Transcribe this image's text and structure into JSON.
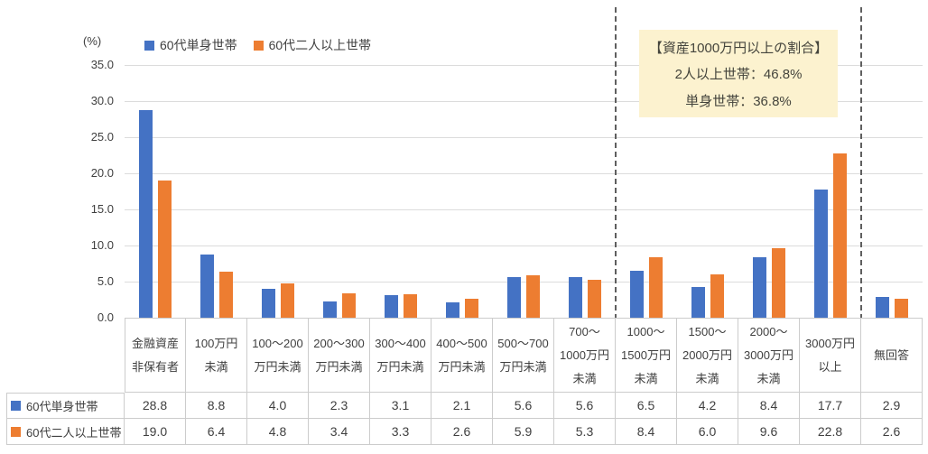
{
  "chart_data": {
    "type": "bar",
    "title": "",
    "ylabel": "(%)",
    "ylim": [
      0,
      35
    ],
    "ytick_step": 5,
    "grid": true,
    "legend_position": "top",
    "categories": [
      [
        "金融資産",
        "非保有者"
      ],
      [
        "100万円",
        "未満"
      ],
      [
        "100～200",
        "万円未満"
      ],
      [
        "200～300",
        "万円未満"
      ],
      [
        "300～400",
        "万円未満"
      ],
      [
        "400～500",
        "万円未満"
      ],
      [
        "500～700",
        "万円未満"
      ],
      [
        "700～",
        "1000万円",
        "未満"
      ],
      [
        "1000～",
        "1500万円",
        "未満"
      ],
      [
        "1500～",
        "2000万円",
        "未満"
      ],
      [
        "2000～",
        "3000万円",
        "未満"
      ],
      [
        "3000万円",
        "以上"
      ],
      [
        "無回答"
      ]
    ],
    "series": [
      {
        "name": "60代単身世帯",
        "color": "#4472C4",
        "values": [
          28.8,
          8.8,
          4.0,
          2.3,
          3.1,
          2.1,
          5.6,
          5.6,
          6.5,
          4.2,
          8.4,
          17.7,
          2.9
        ]
      },
      {
        "name": "60代二人以上世帯",
        "color": "#ED7D31",
        "values": [
          19.0,
          6.4,
          4.8,
          3.4,
          3.3,
          2.6,
          5.9,
          5.3,
          8.4,
          6.0,
          9.6,
          22.8,
          2.6
        ]
      }
    ],
    "separators_after_category_index": [
      8,
      12
    ]
  },
  "annotation": {
    "bg_color": "#FCF2CF",
    "title": "【資産1000万円以上の割合】",
    "lines": [
      "2人以上世帯：46.8%",
      "単身世帯：36.8%"
    ]
  }
}
